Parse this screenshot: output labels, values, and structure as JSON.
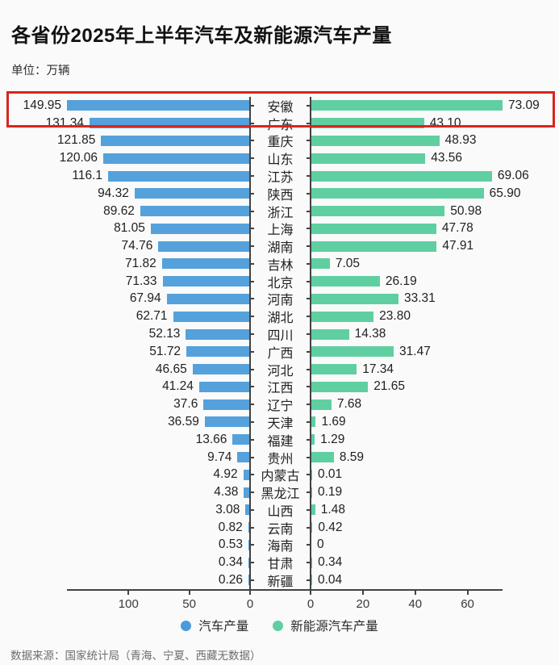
{
  "title": "各省份2025年上半年汽车及新能源汽车产量",
  "subtitle": "单位：万辆",
  "source": "数据来源：国家统计局（青海、宁夏、西藏无数据）",
  "colors": {
    "auto_bar": "#54a1dc",
    "nev_bar": "#5fcfa2",
    "highlight_border": "#d9251d",
    "axis": "#424242",
    "background": "#fafafa"
  },
  "legend": {
    "items": [
      {
        "label": "汽车产量",
        "color": "#4a9ade"
      },
      {
        "label": "新能源汽车产量",
        "color": "#5fcfa2"
      }
    ]
  },
  "chart_data": {
    "type": "bar",
    "orientation": "horizontal-diverging",
    "title": "各省份2025年上半年汽车及新能源汽车产量",
    "unit": "万辆",
    "categories": [
      "安徽",
      "广东",
      "重庆",
      "山东",
      "江苏",
      "陕西",
      "浙江",
      "上海",
      "湖南",
      "吉林",
      "北京",
      "河南",
      "湖北",
      "四川",
      "广西",
      "河北",
      "江西",
      "辽宁",
      "天津",
      "福建",
      "贵州",
      "内蒙古",
      "黑龙江",
      "山西",
      "云南",
      "海南",
      "甘肃",
      "新疆"
    ],
    "series": [
      {
        "name": "汽车产量",
        "side": "left",
        "labels": [
          "149.95",
          "131.34",
          "121.85",
          "120.06",
          "116.1",
          "94.32",
          "89.62",
          "81.05",
          "74.76",
          "71.82",
          "71.33",
          "67.94",
          "62.71",
          "52.13",
          "51.72",
          "46.65",
          "41.24",
          "37.6",
          "36.59",
          "13.66",
          "9.74",
          "4.92",
          "4.38",
          "3.08",
          "0.82",
          "0.53",
          "0.34",
          "0.26"
        ]
      },
      {
        "name": "新能源汽车产量",
        "side": "right",
        "labels": [
          "73.09",
          "43.10",
          "48.93",
          "43.56",
          "69.06",
          "65.90",
          "50.98",
          "47.78",
          "47.91",
          "7.05",
          "26.19",
          "33.31",
          "23.80",
          "14.38",
          "31.47",
          "17.34",
          "21.65",
          "7.68",
          "1.69",
          "1.29",
          "8.59",
          "0.01",
          "0.19",
          "1.48",
          "0.42",
          "0",
          "0.34",
          "0.04"
        ]
      }
    ],
    "left_axis": {
      "ticks": [
        100,
        50,
        0
      ],
      "max": 149.95,
      "direction": "right-to-left"
    },
    "right_axis": {
      "ticks": [
        0,
        20,
        40,
        60
      ],
      "max": 73.09,
      "direction": "left-to-right"
    },
    "highlight": {
      "category": "安徽",
      "note": "red box around top row"
    },
    "legend_position": "bottom",
    "grid": false
  }
}
